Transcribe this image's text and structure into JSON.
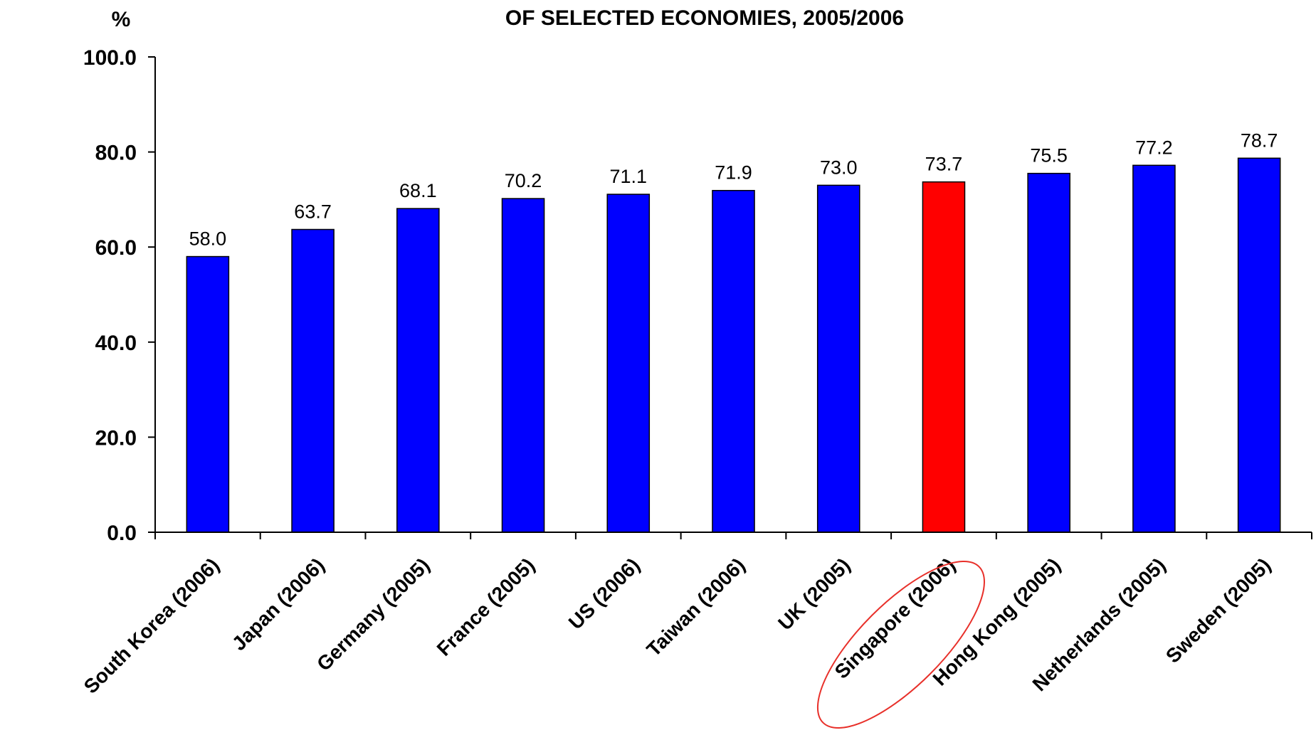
{
  "chart_data": {
    "type": "bar",
    "title": "OF SELECTED ECONOMIES, 2005/2006",
    "unit_label": "%",
    "categories": [
      "South Korea (2006)",
      "Japan (2006)",
      "Germany (2005)",
      "France (2005)",
      "US (2006)",
      "Taiwan (2006)",
      "UK (2005)",
      "Singapore (2006)",
      "Hong Kong (2005)",
      "Netherlands (2005)",
      "Sweden (2005)"
    ],
    "values": [
      58.0,
      63.7,
      68.1,
      70.2,
      71.1,
      71.9,
      73.0,
      73.7,
      75.5,
      77.2,
      78.7
    ],
    "value_labels": [
      "58.0",
      "63.7",
      "68.1",
      "70.2",
      "71.1",
      "71.9",
      "73.0",
      "73.7",
      "75.5",
      "77.2",
      "78.7"
    ],
    "ylim": [
      0,
      100
    ],
    "yticks": [
      "0.0",
      "20.0",
      "40.0",
      "60.0",
      "80.0",
      "100.0"
    ],
    "ytick_values": [
      0,
      20,
      40,
      60,
      80,
      100
    ],
    "grid": false,
    "legend": "none",
    "colors": {
      "default_bar": "#0000ff",
      "highlight_bar": "#ff0000",
      "highlight_circle": "#e8302a"
    },
    "highlighted_category": "Singapore (2006)"
  }
}
